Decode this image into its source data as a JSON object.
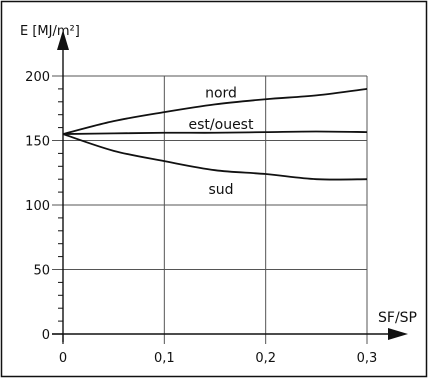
{
  "chart_data": {
    "type": "line",
    "ylabel": "E [MJ/m²]",
    "xlabel": "SF/SP",
    "xlim": [
      0,
      0.3
    ],
    "ylim": [
      0,
      200
    ],
    "x_ticks": [
      0,
      0.1,
      0.2,
      0.3
    ],
    "x_tick_labels": [
      "0",
      "0,1",
      "0,2",
      "0,3"
    ],
    "y_ticks": [
      0,
      50,
      100,
      150,
      200
    ],
    "y_tick_labels": [
      "0",
      "50",
      "100",
      "150",
      "200"
    ],
    "grid": true,
    "x": [
      0,
      0.05,
      0.1,
      0.15,
      0.2,
      0.25,
      0.3
    ],
    "series": [
      {
        "name": "nord",
        "values": [
          155,
          165,
          172,
          178,
          182,
          185,
          190
        ]
      },
      {
        "name": "est/ouest",
        "values": [
          155,
          155.5,
          156,
          156,
          156.5,
          157,
          156.5
        ]
      },
      {
        "name": "sud",
        "values": [
          155,
          142,
          134,
          127,
          124,
          120,
          120
        ]
      }
    ],
    "colors": {
      "line": "#111111",
      "grid": "#555555",
      "frame": "#111111"
    }
  }
}
